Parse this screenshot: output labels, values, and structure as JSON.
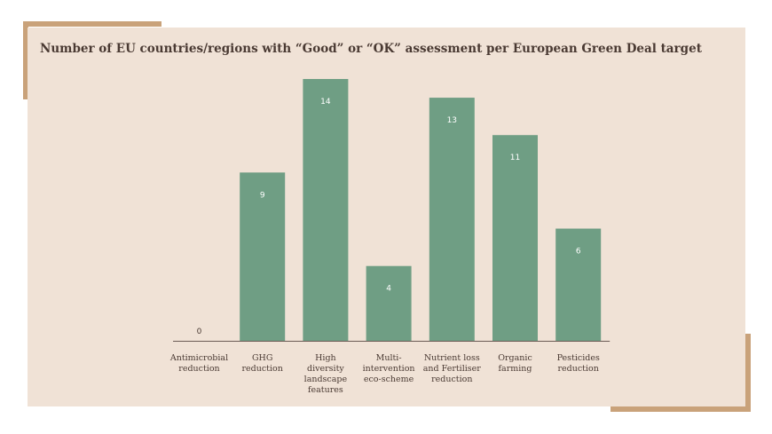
{
  "chart_data": {
    "type": "bar",
    "title": "Number of EU countries/regions with “Good” or “OK” assessment per European Green Deal target",
    "categories": [
      [
        "Antimicrobial",
        "reduction"
      ],
      [
        "GHG",
        "reduction"
      ],
      [
        "High",
        "diversity",
        "landscape",
        "features"
      ],
      [
        "Multi-",
        "intervention",
        "eco-scheme"
      ],
      [
        "Nutrient loss",
        "and Fertiliser",
        "reduction"
      ],
      [
        "Organic",
        "farming"
      ],
      [
        "Pesticides",
        "reduction"
      ]
    ],
    "values": [
      0,
      9,
      14,
      4,
      13,
      11,
      6
    ],
    "ylim": [
      0,
      14
    ],
    "xlabel": "",
    "ylabel": "",
    "grid": false,
    "colors": {
      "bar": "#6f9e84",
      "label_on_bar": "#ffffff",
      "label_outside": "#4a3a33",
      "axis": "#6b5b55",
      "tick_text": "#4a3a33"
    }
  }
}
